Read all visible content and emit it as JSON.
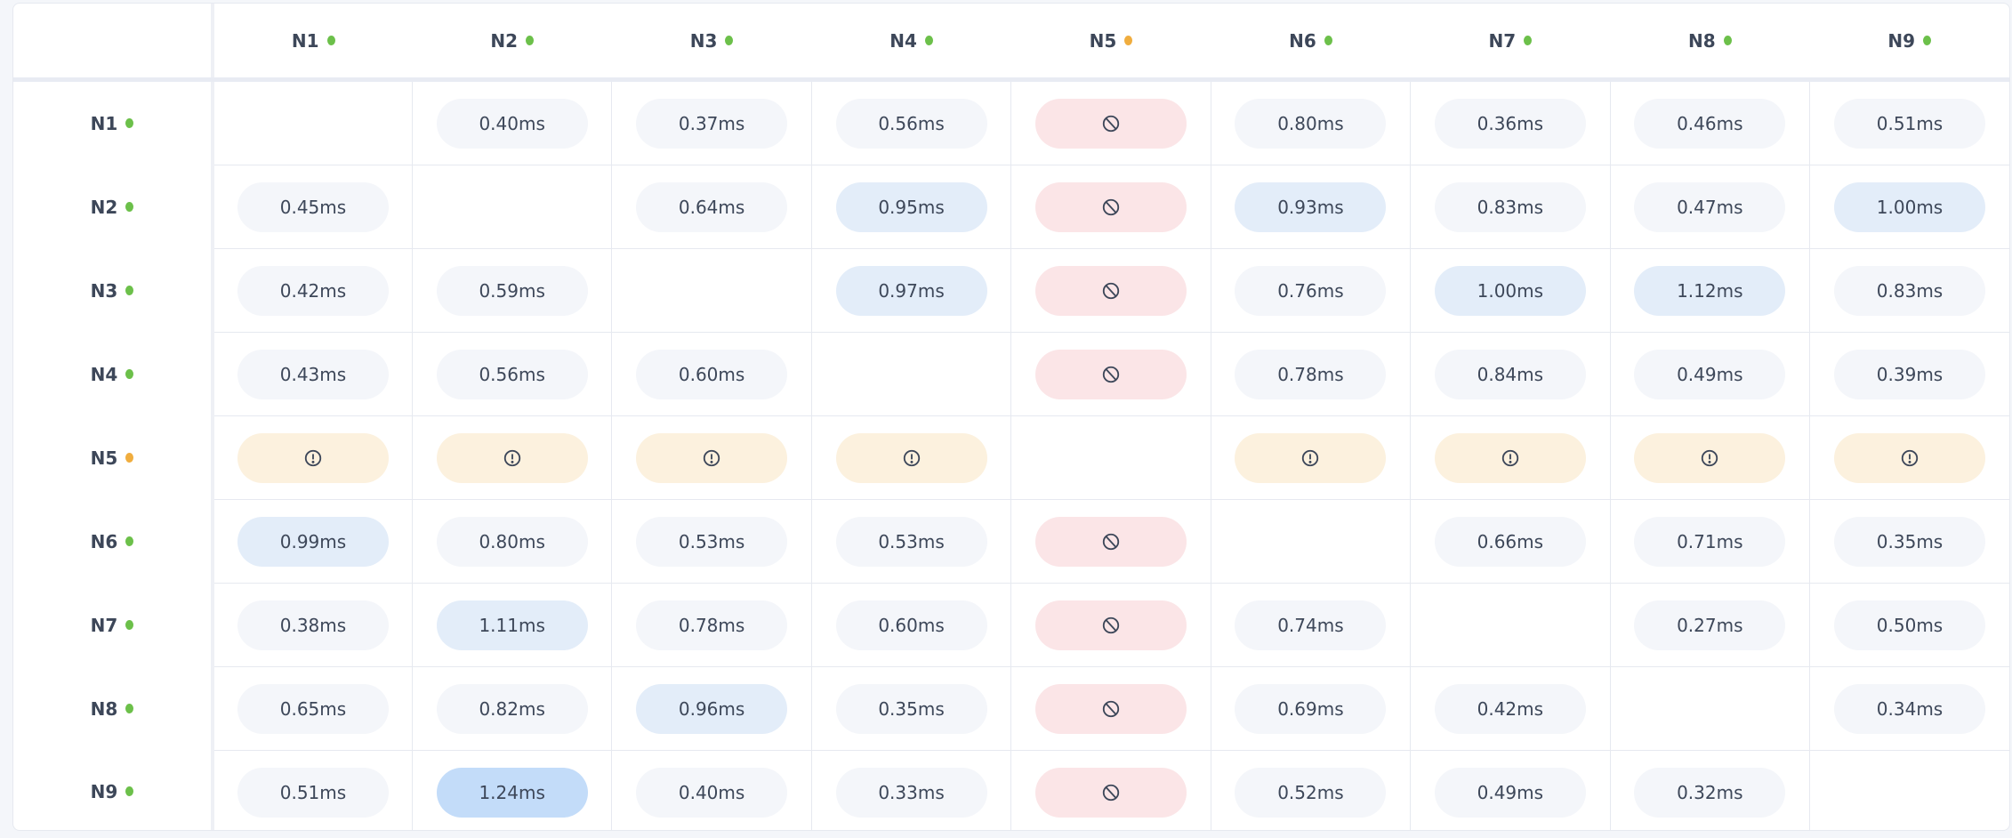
{
  "colors": {
    "status_ok": "#6cc04a",
    "status_warning": "#f0ad3e",
    "latency_normal": "#f4f6fa",
    "latency_medium": "#e3edf9",
    "latency_high": "#c3dcf9",
    "blocked_bg": "#fbe5e7",
    "warning_bg": "#fcf1de"
  },
  "nodes": [
    {
      "label": "N1",
      "status": "ok"
    },
    {
      "label": "N2",
      "status": "ok"
    },
    {
      "label": "N3",
      "status": "ok"
    },
    {
      "label": "N4",
      "status": "ok"
    },
    {
      "label": "N5",
      "status": "warning"
    },
    {
      "label": "N6",
      "status": "ok"
    },
    {
      "label": "N7",
      "status": "ok"
    },
    {
      "label": "N8",
      "status": "ok"
    },
    {
      "label": "N9",
      "status": "ok"
    }
  ],
  "icons": {
    "blocked": "ban-icon",
    "warning": "exclamation-circle-icon"
  },
  "matrix": [
    [
      null,
      "0.40ms",
      "0.37ms",
      "0.56ms",
      "blocked",
      "0.80ms",
      "0.36ms",
      "0.46ms",
      "0.51ms"
    ],
    [
      "0.45ms",
      null,
      "0.64ms",
      "0.95ms",
      "blocked",
      "0.93ms",
      "0.83ms",
      "0.47ms",
      "1.00ms"
    ],
    [
      "0.42ms",
      "0.59ms",
      null,
      "0.97ms",
      "blocked",
      "0.76ms",
      "1.00ms",
      "1.12ms",
      "0.83ms"
    ],
    [
      "0.43ms",
      "0.56ms",
      "0.60ms",
      null,
      "blocked",
      "0.78ms",
      "0.84ms",
      "0.49ms",
      "0.39ms"
    ],
    [
      "warning",
      "warning",
      "warning",
      "warning",
      null,
      "warning",
      "warning",
      "warning",
      "warning"
    ],
    [
      "0.99ms",
      "0.80ms",
      "0.53ms",
      "0.53ms",
      "blocked",
      null,
      "0.66ms",
      "0.71ms",
      "0.35ms"
    ],
    [
      "0.38ms",
      "1.11ms",
      "0.78ms",
      "0.60ms",
      "blocked",
      "0.74ms",
      null,
      "0.27ms",
      "0.50ms"
    ],
    [
      "0.65ms",
      "0.82ms",
      "0.96ms",
      "0.35ms",
      "blocked",
      "0.69ms",
      "0.42ms",
      null,
      "0.34ms"
    ],
    [
      "0.51ms",
      "1.24ms",
      "0.40ms",
      "0.33ms",
      "blocked",
      "0.52ms",
      "0.49ms",
      "0.32ms",
      null
    ]
  ]
}
